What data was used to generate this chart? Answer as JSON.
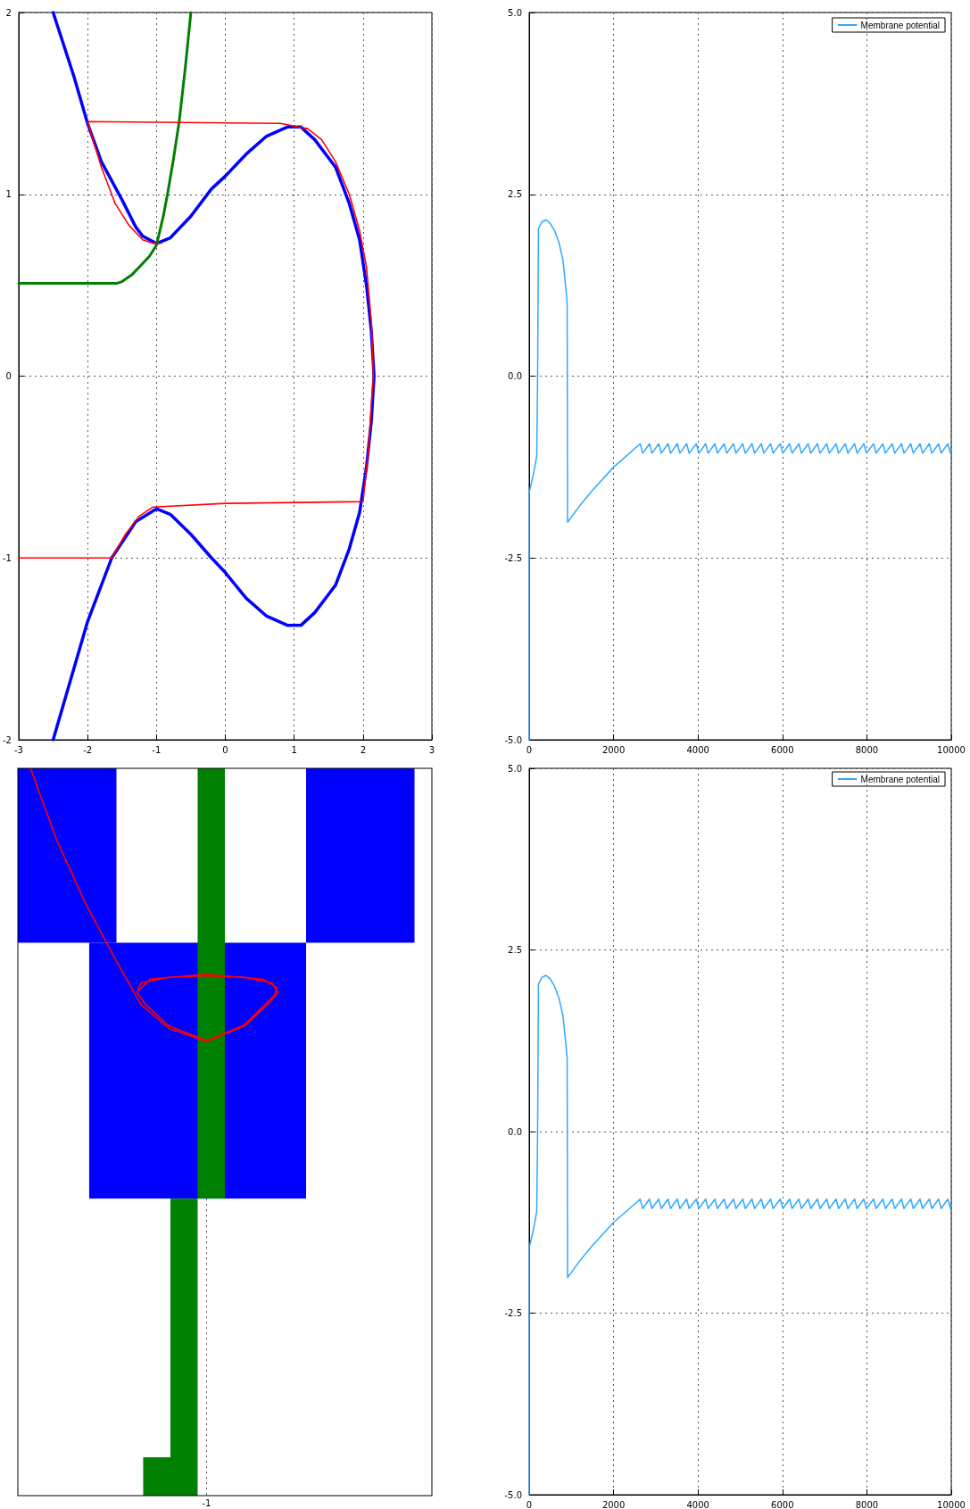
{
  "chart_data": [
    {
      "type": "line",
      "xlim": [
        -3,
        3
      ],
      "xticks": [
        -3,
        -2,
        -1,
        0,
        1,
        2,
        3
      ],
      "ylim": [
        -2,
        2
      ],
      "yticks": [
        -2,
        -1,
        0,
        1,
        2
      ],
      "grid": true,
      "legend": false,
      "marker": "none",
      "line_style": "solid",
      "series": [
        {
          "color": "#0000ff",
          "x": [
            -2.5,
            -2.2,
            -2,
            -1.8,
            -1.5,
            -1.3,
            -1.2,
            -1,
            -0.8,
            -0.5,
            -0.2,
            0,
            0.3,
            0.6,
            0.9,
            1.1,
            1.3,
            1.6,
            1.8,
            1.95,
            2.05,
            2.12,
            2.16,
            2.12,
            2.05,
            1.95,
            1.8,
            1.6,
            1.3,
            1.1,
            0.9,
            0.6,
            0.3,
            0,
            -0.2,
            -0.5,
            -0.8,
            -1,
            -1.3,
            -1.65,
            -2,
            -2.5
          ],
          "values": [
            2,
            1.65,
            1.39,
            1.18,
            0.97,
            0.82,
            0.77,
            0.73,
            0.76,
            0.88,
            1.03,
            1.1,
            1.22,
            1.32,
            1.37,
            1.37,
            1.3,
            1.15,
            0.95,
            0.75,
            0.5,
            0.25,
            0,
            -0.25,
            -0.5,
            -0.75,
            -0.95,
            -1.15,
            -1.3,
            -1.37,
            -1.37,
            -1.32,
            -1.22,
            -1.08,
            -1.0,
            -0.87,
            -0.76,
            -0.73,
            -0.8,
            -1.0,
            -1.35,
            -2
          ]
        },
        {
          "color": "#008000",
          "x": [
            -3,
            -1.58,
            -1.5,
            -1.35,
            -1.2,
            -1.1,
            -1,
            -0.9,
            -0.84,
            -0.75,
            -0.67,
            -0.58,
            -0.5
          ],
          "values": [
            0.51,
            0.51,
            0.52,
            0.56,
            0.62,
            0.66,
            0.72,
            0.88,
            1.0,
            1.2,
            1.4,
            1.7,
            2.0
          ]
        },
        {
          "color": "#ff0000",
          "x": [
            -3,
            -1.65,
            -1.45,
            -1.25,
            -1.05,
            0,
            2.0,
            2.08,
            2.13,
            2.15,
            2.12,
            2.05,
            1.95,
            1.8,
            1.6,
            1.4,
            1.2,
            0.8,
            -2.0,
            -1.8,
            -1.6,
            -1.4,
            -1.2,
            -1.05,
            -0.93
          ],
          "values": [
            -1.0,
            -1.0,
            -0.87,
            -0.77,
            -0.72,
            -0.7,
            -0.69,
            -0.4,
            -0.1,
            0,
            0.3,
            0.6,
            0.8,
            1.0,
            1.18,
            1.3,
            1.36,
            1.39,
            1.4,
            1.15,
            0.95,
            0.83,
            0.75,
            0.73,
            0.73
          ]
        }
      ]
    },
    {
      "type": "line",
      "xlim": [
        0,
        10000
      ],
      "xticks": [
        0,
        2000,
        4000,
        6000,
        8000,
        10000
      ],
      "ylim": [
        -5,
        5
      ],
      "yticks": [
        {
          "value": -5,
          "label": "-5.0"
        },
        {
          "value": -2.5,
          "label": "-2.5"
        },
        {
          "value": 0,
          "label": "0.0"
        },
        {
          "value": 2.5,
          "label": "2.5"
        },
        {
          "value": 5,
          "label": "5.0"
        }
      ],
      "grid": true,
      "legend": "top right",
      "marker": "none",
      "line_style": "solid",
      "series": [
        {
          "name": "Membrane potential",
          "color": "#30a8ff",
          "x": [
            0,
            0,
            100,
            180,
            200,
            220,
            300,
            400,
            500,
            600,
            700,
            800,
            870,
            900,
            910,
            1200,
            1500,
            2000,
            2300,
            2630,
            2690,
            2850,
            2910,
            3070,
            3130,
            3290,
            3350,
            3510,
            3570,
            3730,
            3790,
            3960,
            4020,
            4180,
            4240,
            4400,
            4460,
            4620,
            4680,
            4840,
            4900,
            5060,
            5120,
            5280,
            5340,
            5500,
            5560,
            5720,
            5780,
            5950,
            6010,
            6170,
            6230,
            6390,
            6450,
            6610,
            6670,
            6830,
            6890,
            7050,
            7110,
            7270,
            7330,
            7490,
            7550,
            7710,
            7770,
            7930,
            7990,
            8160,
            8220,
            8380,
            8440,
            8600,
            8660,
            8820,
            8880,
            9040,
            9100,
            9260,
            9320,
            9480,
            9540,
            9700,
            9760,
            9920,
            9980,
            10000
          ],
          "values": [
            -5,
            -1.6,
            -1.35,
            -1.1,
            0,
            2.03,
            2.12,
            2.15,
            2.1,
            2.0,
            1.85,
            1.6,
            1.2,
            1.0,
            -2.01,
            -1.78,
            -1.57,
            -1.25,
            -1.1,
            -0.93,
            -1.06,
            -0.93,
            -1.06,
            -0.93,
            -1.06,
            -0.93,
            -1.06,
            -0.93,
            -1.06,
            -0.93,
            -1.06,
            -0.93,
            -1.06,
            -0.93,
            -1.06,
            -0.93,
            -1.06,
            -0.93,
            -1.06,
            -0.93,
            -1.06,
            -0.93,
            -1.06,
            -0.93,
            -1.06,
            -0.93,
            -1.06,
            -0.93,
            -1.06,
            -0.93,
            -1.06,
            -0.93,
            -1.06,
            -0.93,
            -1.06,
            -0.93,
            -1.06,
            -0.93,
            -1.06,
            -0.93,
            -1.06,
            -0.93,
            -1.06,
            -0.93,
            -1.06,
            -0.93,
            -1.06,
            -0.93,
            -1.06,
            -0.93,
            -1.06,
            -0.93,
            -1.06,
            -0.93,
            -1.06,
            -0.93,
            -1.06,
            -0.93,
            -1.06,
            -0.93,
            -1.06,
            -0.93,
            -1.06,
            -0.93,
            -1.06,
            -0.93,
            -1.06,
            -1.02
          ]
        }
      ]
    },
    {
      "type": "other",
      "annotations": [
        "-1"
      ]
    },
    {
      "type": "line",
      "xlim": [
        0,
        10000
      ],
      "xticks": [
        0,
        2000,
        4000,
        6000,
        8000,
        10000
      ],
      "ylim": [
        -5,
        5
      ],
      "yticks": [
        {
          "value": -5,
          "label": "-5.0"
        },
        {
          "value": -2.5,
          "label": "-2.5"
        },
        {
          "value": 0,
          "label": "0.0"
        },
        {
          "value": 2.5,
          "label": "2.5"
        },
        {
          "value": 5,
          "label": "5.0"
        }
      ],
      "grid": true,
      "legend": "top right",
      "marker": "none",
      "line_style": "solid",
      "series": [
        {
          "name": "Membrane potential",
          "color": "#30a8ff",
          "x": [
            0,
            0,
            100,
            180,
            200,
            220,
            300,
            400,
            500,
            600,
            700,
            800,
            870,
            900,
            910,
            1200,
            1500,
            2000,
            2300,
            2630,
            2690,
            2850,
            2910,
            3070,
            3130,
            3290,
            3350,
            3510,
            3570,
            3730,
            3790,
            3960,
            4020,
            4180,
            4240,
            4400,
            4460,
            4620,
            4680,
            4840,
            4900,
            5060,
            5120,
            5280,
            5340,
            5500,
            5560,
            5720,
            5780,
            5950,
            6010,
            6170,
            6230,
            6390,
            6450,
            6610,
            6670,
            6830,
            6890,
            7050,
            7110,
            7270,
            7330,
            7490,
            7550,
            7710,
            7770,
            7930,
            7990,
            8160,
            8220,
            8380,
            8440,
            8600,
            8660,
            8820,
            8880,
            9040,
            9100,
            9260,
            9320,
            9480,
            9540,
            9700,
            9760,
            9920,
            9980,
            10000
          ],
          "values": [
            -5,
            -1.6,
            -1.35,
            -1.1,
            0,
            2.03,
            2.12,
            2.15,
            2.1,
            2.0,
            1.85,
            1.6,
            1.2,
            1.0,
            -2.01,
            -1.78,
            -1.57,
            -1.25,
            -1.1,
            -0.93,
            -1.06,
            -0.93,
            -1.06,
            -0.93,
            -1.06,
            -0.93,
            -1.06,
            -0.93,
            -1.06,
            -0.93,
            -1.06,
            -0.93,
            -1.06,
            -0.93,
            -1.06,
            -0.93,
            -1.06,
            -0.93,
            -1.06,
            -0.93,
            -1.06,
            -0.93,
            -1.06,
            -0.93,
            -1.06,
            -0.93,
            -1.06,
            -0.93,
            -1.06,
            -0.93,
            -1.06,
            -0.93,
            -1.06,
            -0.93,
            -1.06,
            -0.93,
            -1.06,
            -0.93,
            -1.06,
            -0.93,
            -1.06,
            -0.93,
            -1.06,
            -0.93,
            -1.06,
            -0.93,
            -1.06,
            -0.93,
            -1.06,
            -0.93,
            -1.06,
            -0.93,
            -1.06,
            -0.93,
            -1.06,
            -0.93,
            -1.06,
            -0.93,
            -1.06,
            -0.93,
            -1.06,
            -0.93,
            -1.06,
            -0.93,
            -1.06,
            -0.93,
            -1.06,
            -1.02
          ]
        }
      ]
    }
  ]
}
